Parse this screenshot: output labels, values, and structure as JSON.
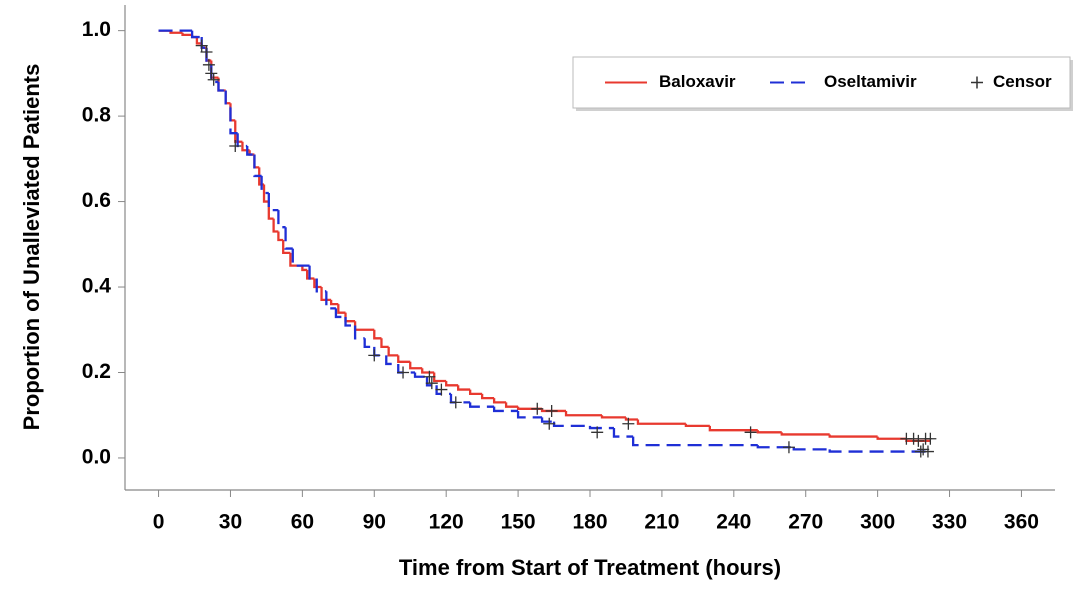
{
  "chart_data": {
    "type": "step",
    "xlabel": "Time from Start of Treatment (hours)",
    "ylabel": "Proportion of Unalleviated Patients",
    "xlim": [
      -14,
      374
    ],
    "ylim": [
      -0.075,
      1.06
    ],
    "xticks": [
      0,
      30,
      60,
      90,
      120,
      150,
      180,
      210,
      240,
      270,
      300,
      330,
      360
    ],
    "yticks": [
      {
        "value": 0,
        "label": "0.0"
      },
      0.2,
      0.4,
      0.6,
      0.8,
      {
        "value": 1,
        "label": "1.0"
      }
    ],
    "legend": "upper right",
    "series": [
      {
        "name": "Baloxavir",
        "color": "#e8392f",
        "style": "solid",
        "x": [
          0,
          5,
          10,
          14,
          16,
          18,
          20,
          22,
          25,
          28,
          30,
          32,
          35,
          38,
          40,
          42,
          44,
          46,
          48,
          50,
          52,
          55,
          60,
          62,
          65,
          68,
          72,
          75,
          78,
          82,
          90,
          93,
          96,
          100,
          105,
          110,
          115,
          120,
          125,
          130,
          135,
          140,
          145,
          150,
          160,
          170,
          185,
          195,
          200,
          220,
          230,
          250,
          260,
          280,
          300,
          312,
          322
        ],
        "values": [
          1.0,
          0.995,
          0.99,
          0.985,
          0.97,
          0.96,
          0.93,
          0.89,
          0.86,
          0.83,
          0.79,
          0.74,
          0.72,
          0.71,
          0.68,
          0.64,
          0.6,
          0.56,
          0.53,
          0.51,
          0.48,
          0.45,
          0.44,
          0.42,
          0.4,
          0.37,
          0.36,
          0.34,
          0.32,
          0.3,
          0.28,
          0.26,
          0.24,
          0.225,
          0.21,
          0.2,
          0.18,
          0.17,
          0.16,
          0.15,
          0.14,
          0.13,
          0.12,
          0.115,
          0.11,
          0.1,
          0.095,
          0.09,
          0.08,
          0.075,
          0.065,
          0.06,
          0.055,
          0.05,
          0.045,
          0.04,
          0.04
        ]
      },
      {
        "name": "Oseltamivir",
        "color": "#1f2fd6",
        "style": "dashed",
        "x": [
          0,
          14,
          18,
          20,
          22,
          25,
          28,
          30,
          33,
          37,
          40,
          43,
          46,
          50,
          53,
          56,
          63,
          66,
          70,
          74,
          78,
          82,
          86,
          90,
          95,
          100,
          107,
          112,
          116,
          122,
          130,
          140,
          150,
          160,
          165,
          180,
          190,
          198,
          250,
          265,
          280,
          320
        ],
        "values": [
          1.0,
          0.985,
          0.96,
          0.92,
          0.88,
          0.86,
          0.82,
          0.76,
          0.73,
          0.71,
          0.66,
          0.62,
          0.58,
          0.54,
          0.49,
          0.45,
          0.42,
          0.39,
          0.35,
          0.33,
          0.31,
          0.28,
          0.26,
          0.24,
          0.22,
          0.2,
          0.19,
          0.17,
          0.15,
          0.13,
          0.12,
          0.11,
          0.095,
          0.085,
          0.075,
          0.07,
          0.05,
          0.03,
          0.025,
          0.02,
          0.015,
          0.015
        ]
      },
      {
        "name": "Censor",
        "color": "#333333",
        "style": "plus",
        "x": [
          18,
          20,
          21,
          22,
          23,
          32,
          90,
          102,
          113,
          114,
          118,
          124,
          158,
          163,
          164,
          183,
          196,
          247,
          263,
          312,
          315,
          317,
          318,
          319,
          320,
          321,
          322
        ],
        "values": [
          0.965,
          0.95,
          0.92,
          0.9,
          0.885,
          0.73,
          0.24,
          0.2,
          0.19,
          0.175,
          0.16,
          0.13,
          0.115,
          0.08,
          0.11,
          0.06,
          0.08,
          0.06,
          0.025,
          0.045,
          0.045,
          0.04,
          0.015,
          0.02,
          0.045,
          0.015,
          0.045
        ]
      }
    ]
  }
}
